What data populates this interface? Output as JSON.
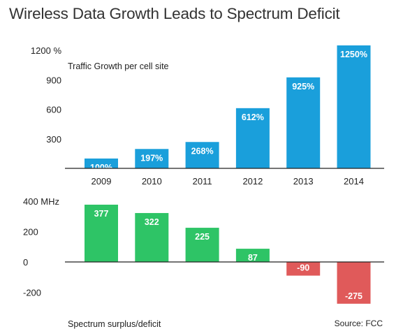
{
  "title": "Wireless Data Growth Leads to Spectrum Deficit",
  "source": "Source: FCC",
  "colors": {
    "growth_bar": "#1a9fdb",
    "surplus_bar": "#2ec466",
    "deficit_bar": "#e05a5a",
    "axis": "#222222",
    "label": "#ffffff"
  },
  "chart_data": [
    {
      "type": "bar",
      "ylabel": "Traffic Growth per cell site",
      "unit": "%",
      "categories": [
        "2009",
        "2010",
        "2011",
        "2012",
        "2013",
        "2014"
      ],
      "values": [
        100,
        197,
        268,
        612,
        925,
        1250
      ],
      "data_labels": [
        "100%",
        "197%",
        "268%",
        "612%",
        "925%",
        "1250%"
      ],
      "yticks": [
        "1200 %",
        "900",
        "600",
        "300"
      ],
      "ytick_values": [
        1200,
        900,
        600,
        300
      ],
      "ylim": [
        0,
        1250
      ],
      "grid": false
    },
    {
      "type": "bar",
      "ylabel": "Spectrum surplus/deficit",
      "unit": "MHz",
      "categories": [
        "2009",
        "2010",
        "2011",
        "2012",
        "2013",
        "2014"
      ],
      "values": [
        377,
        322,
        225,
        87,
        -90,
        -275
      ],
      "data_labels": [
        "377",
        "322",
        "225",
        "87",
        "-90",
        "-275"
      ],
      "yticks": [
        "400 MHz",
        "200",
        "0",
        "-200"
      ],
      "ytick_values": [
        400,
        200,
        0,
        -200
      ],
      "ylim": [
        -275,
        400
      ],
      "grid": false
    }
  ]
}
